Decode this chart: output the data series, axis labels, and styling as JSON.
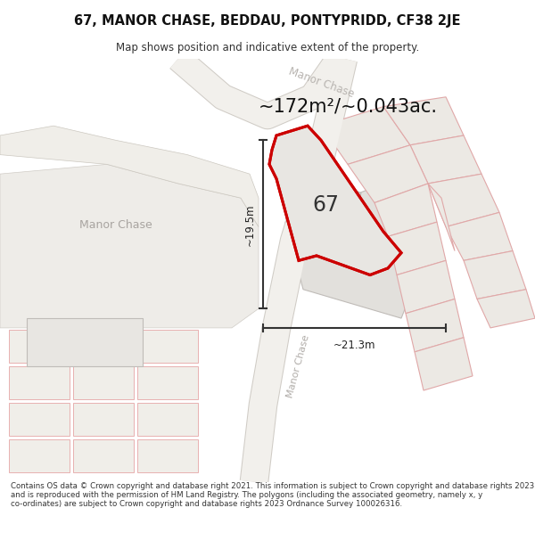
{
  "title_line1": "67, MANOR CHASE, BEDDAU, PONTYPRIDD, CF38 2JE",
  "title_line2": "Map shows position and indicative extent of the property.",
  "area_label": "~172m²/~0.043ac.",
  "plot_number": "67",
  "dim_width": "~21.3m",
  "dim_height": "~19.5m",
  "footer_text": "Contains OS data © Crown copyright and database right 2021. This information is subject to Crown copyright and database rights 2023 and is reproduced with the permission of HM Land Registry. The polygons (including the associated geometry, namely x, y co-ordinates) are subject to Crown copyright and database rights 2023 Ordnance Survey 100026316.",
  "bg_color": "#f7f6f4",
  "road_fill": "#e8e6e2",
  "road_edge": "#c8c4bc",
  "parcel_fill": "#e8e6e2",
  "parcel_edge_gray": "#c0bdb8",
  "parcel_edge_pink": "#e8a8a8",
  "plot_fill": "#e0dedd",
  "plot_stroke": "#cc0000",
  "dim_color": "#333333",
  "road_text_color": "#b0aaa0",
  "number_color": "#333333",
  "area_color": "#111111"
}
